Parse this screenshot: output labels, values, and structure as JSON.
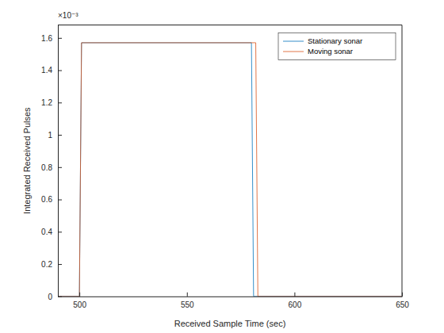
{
  "chart_data": {
    "type": "line",
    "x_label": "Received Sample Time (sec)",
    "y_label": "Integrated Received Pulses",
    "annotations": [
      "×10⁻³"
    ],
    "xlim": [
      490,
      650
    ],
    "xticks": [
      500,
      550,
      600,
      650
    ],
    "ylim": [
      0,
      0.00168
    ],
    "yticks": [
      0,
      {
        "value": 0.0002,
        "label": "0.2"
      },
      {
        "value": 0.0004,
        "label": "0.4"
      },
      {
        "value": 0.0006,
        "label": "0.6"
      },
      {
        "value": 0.0008,
        "label": "0.8"
      },
      {
        "value": 0.001,
        "label": "1"
      },
      {
        "value": 0.0012,
        "label": "1.2"
      },
      {
        "value": 0.0014,
        "label": "1.4"
      },
      {
        "value": 0.0016,
        "label": "1.6"
      }
    ],
    "grid": false,
    "legend": "northeast",
    "series": [
      {
        "name": "Stationary sonar",
        "color": "#0072bd",
        "x": [
          490,
          500,
          501,
          580,
          581,
          650
        ],
        "values": [
          0,
          0,
          0.00157,
          0.00157,
          0,
          0
        ]
      },
      {
        "name": "Moving sonar",
        "color": "#d95319",
        "x": [
          490,
          500,
          501,
          582,
          583,
          650
        ],
        "values": [
          0,
          0,
          0.00157,
          0.00157,
          0,
          0
        ]
      }
    ]
  }
}
